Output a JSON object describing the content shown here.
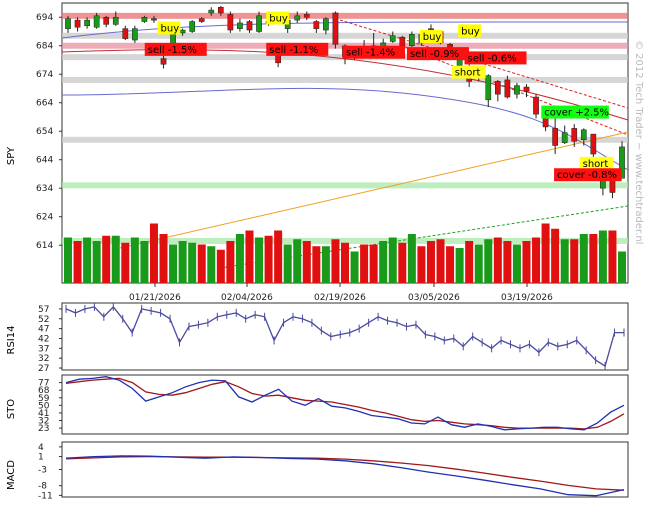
{
  "watermark": "© 2012 Tech Trader ~ www.techtrader.nl",
  "colors": {
    "up": "#1a9a1a",
    "down": "#e01010",
    "rsi": "#4a4aa0",
    "sto_k": "#2030b0",
    "sto_d": "#a01818",
    "buy_bg": "#ffff00",
    "sell_bg": "#ff1010",
    "short_bg": "#ffff20",
    "cover_bg": "#10ff10"
  },
  "chart_data": [
    {
      "type": "candlestick",
      "ylabel": "SPY",
      "ylim": [
        606,
        699
      ],
      "yticks": [
        614,
        624,
        634,
        644,
        654,
        664,
        674,
        684,
        694
      ],
      "dates": [
        "01/21/2026",
        "02/04/2026",
        "02/19/2026",
        "03/05/2026",
        "03/19/2026"
      ],
      "n": 59,
      "candles": [
        {
          "o": 690.0,
          "c": 693.5,
          "h": 694.5,
          "l": 688.5
        },
        {
          "o": 693.0,
          "c": 690.5,
          "h": 694.0,
          "l": 689.0
        },
        {
          "o": 691.0,
          "c": 693.0,
          "h": 694.0,
          "l": 690.0
        },
        {
          "o": 690.5,
          "c": 694.5,
          "h": 695.5,
          "l": 690.0
        },
        {
          "o": 694.0,
          "c": 691.5,
          "h": 694.5,
          "l": 690.5
        },
        {
          "o": 691.5,
          "c": 694.0,
          "h": 696.0,
          "l": 691.0
        },
        {
          "o": 690.0,
          "c": 686.5,
          "h": 691.0,
          "l": 686.0
        },
        {
          "o": 686.0,
          "c": 690.0,
          "h": 691.0,
          "l": 685.0
        },
        {
          "o": 692.5,
          "c": 694.0,
          "h": 694.5,
          "l": 692.0
        },
        {
          "o": 693.5,
          "c": 693.0,
          "h": 694.5,
          "l": 692.0
        },
        {
          "o": 679.5,
          "c": 677.5,
          "h": 681.5,
          "l": 676.0
        },
        {
          "o": 684.0,
          "c": 688.0,
          "h": 688.5,
          "l": 682.0
        },
        {
          "o": 688.5,
          "c": 689.5,
          "h": 690.0,
          "l": 687.5
        },
        {
          "o": 689.0,
          "c": 692.5,
          "h": 693.0,
          "l": 688.5
        },
        {
          "o": 693.5,
          "c": 692.5,
          "h": 694.0,
          "l": 692.0
        },
        {
          "o": 695.5,
          "c": 696.5,
          "h": 697.5,
          "l": 694.5
        },
        {
          "o": 697.5,
          "c": 695.5,
          "h": 698.0,
          "l": 694.5
        },
        {
          "o": 695.0,
          "c": 689.5,
          "h": 696.0,
          "l": 688.5
        },
        {
          "o": 690.0,
          "c": 692.0,
          "h": 693.5,
          "l": 689.0
        },
        {
          "o": 692.5,
          "c": 689.5,
          "h": 693.0,
          "l": 688.5
        },
        {
          "o": 689.0,
          "c": 694.5,
          "h": 696.0,
          "l": 688.5
        },
        {
          "o": 692.5,
          "c": 692.0,
          "h": 696.0,
          "l": 691.0
        },
        {
          "o": 682.0,
          "c": 678.0,
          "h": 682.5,
          "l": 676.5
        },
        {
          "o": 690.0,
          "c": 693.0,
          "h": 693.5,
          "l": 688.5
        },
        {
          "o": 693.0,
          "c": 694.5,
          "h": 696.0,
          "l": 692.0
        },
        {
          "o": 695.0,
          "c": 694.0,
          "h": 696.0,
          "l": 693.0
        },
        {
          "o": 692.5,
          "c": 690.0,
          "h": 693.0,
          "l": 688.5
        },
        {
          "o": 689.5,
          "c": 693.5,
          "h": 694.0,
          "l": 688.0
        },
        {
          "o": 695.5,
          "c": 684.5,
          "h": 696.0,
          "l": 683.0
        },
        {
          "o": 684.0,
          "c": 680.0,
          "h": 684.5,
          "l": 677.5
        },
        {
          "o": 680.0,
          "c": 682.5,
          "h": 683.0,
          "l": 679.0
        },
        {
          "o": 682.5,
          "c": 680.5,
          "h": 686.0,
          "l": 679.5
        },
        {
          "o": 684.0,
          "c": 683.0,
          "h": 688.5,
          "l": 682.5
        },
        {
          "o": 683.0,
          "c": 685.0,
          "h": 686.5,
          "l": 682.0
        },
        {
          "o": 685.5,
          "c": 687.5,
          "h": 689.0,
          "l": 685.0
        },
        {
          "o": 687.0,
          "c": 684.0,
          "h": 687.5,
          "l": 682.5
        },
        {
          "o": 684.0,
          "c": 688.0,
          "h": 689.0,
          "l": 683.5
        },
        {
          "o": 688.0,
          "c": 685.0,
          "h": 688.5,
          "l": 684.0
        },
        {
          "o": 690.0,
          "c": 689.0,
          "h": 691.5,
          "l": 688.5
        },
        {
          "o": 689.0,
          "c": 685.0,
          "h": 689.5,
          "l": 684.5
        },
        {
          "o": 684.5,
          "c": 680.5,
          "h": 685.0,
          "l": 679.0
        },
        {
          "o": 677.0,
          "c": 682.0,
          "h": 683.5,
          "l": 676.0
        },
        {
          "o": 676.0,
          "c": 671.5,
          "h": 678.5,
          "l": 669.5
        },
        {
          "o": 673.0,
          "c": 675.0,
          "h": 675.5,
          "l": 671.5
        },
        {
          "o": 665.0,
          "c": 673.5,
          "h": 674.0,
          "l": 662.5
        },
        {
          "o": 671.5,
          "c": 667.0,
          "h": 672.0,
          "l": 664.5
        },
        {
          "o": 672.0,
          "c": 666.0,
          "h": 673.5,
          "l": 665.5
        },
        {
          "o": 667.0,
          "c": 670.0,
          "h": 671.0,
          "l": 665.5
        },
        {
          "o": 669.5,
          "c": 668.0,
          "h": 670.5,
          "l": 666.0
        },
        {
          "o": 666.0,
          "c": 660.0,
          "h": 667.0,
          "l": 658.5
        },
        {
          "o": 660.0,
          "c": 655.5,
          "h": 661.0,
          "l": 654.0
        },
        {
          "o": 655.0,
          "c": 649.0,
          "h": 658.5,
          "l": 646.0
        },
        {
          "o": 650.0,
          "c": 653.5,
          "h": 656.0,
          "l": 649.5
        },
        {
          "o": 655.0,
          "c": 650.5,
          "h": 656.5,
          "l": 648.5
        },
        {
          "o": 651.0,
          "c": 654.5,
          "h": 655.0,
          "l": 649.0
        },
        {
          "o": 653.0,
          "c": 646.0,
          "h": 653.0,
          "l": 644.5
        },
        {
          "o": 634.0,
          "c": 640.0,
          "h": 641.0,
          "l": 631.5
        },
        {
          "o": 638.0,
          "c": 632.5,
          "h": 640.0,
          "l": 630.5
        },
        {
          "o": 637.5,
          "c": 648.5,
          "h": 650.5,
          "l": 637.5
        }
      ],
      "volume": [
        26,
        24,
        26,
        24,
        27,
        27,
        23,
        26,
        24,
        34,
        28,
        22,
        24,
        23,
        22,
        21,
        19,
        24,
        28,
        30,
        26,
        27,
        30,
        22,
        25,
        24,
        21,
        21,
        25,
        23,
        18,
        22,
        22,
        24,
        26,
        23,
        28,
        21,
        24,
        25,
        21,
        20,
        24,
        22,
        25,
        26,
        24,
        22,
        24,
        26,
        34,
        31,
        25,
        25,
        28,
        28,
        30,
        30,
        18
      ],
      "hlines": [
        694.5,
        687.5,
        684.0,
        680.0,
        672.0,
        651.0,
        635.0,
        615.5
      ],
      "signals": [
        {
          "text": "buy",
          "i": 14,
          "y": 689.0,
          "kind": "buy"
        },
        {
          "text": "sell -1.5%",
          "i": 12,
          "y": 681.5,
          "kind": "sell"
        },
        {
          "text": "buy",
          "i": 31,
          "y": 692.5,
          "kind": "buy"
        },
        {
          "text": "sell -1.1%",
          "i": 31,
          "y": 681.5,
          "kind": "sell"
        },
        {
          "text": "sell -1.4%",
          "i": 43,
          "y": 680.5,
          "kind": "sell"
        },
        {
          "text": "buy",
          "i": 55,
          "y": 686.0,
          "kind": "buy"
        },
        {
          "text": "sell -0.9%",
          "i": 53,
          "y": 680.0,
          "kind": "sell"
        },
        {
          "text": "buy",
          "i": 61,
          "y": 688.0,
          "kind": "buy"
        },
        {
          "text": "sell -0.6%",
          "i": 62,
          "y": 678.5,
          "kind": "sell"
        },
        {
          "text": "short",
          "i": 60,
          "y": 673.5,
          "kind": "short"
        },
        {
          "text": "cover +2.5%",
          "i": 74,
          "y": 659.5,
          "kind": "cover"
        },
        {
          "text": "short",
          "i": 80,
          "y": 641.5,
          "kind": "short"
        },
        {
          "text": "cover -0.8%",
          "i": 76,
          "y": 637.5,
          "kind": "sell"
        }
      ]
    },
    {
      "type": "line",
      "ylabel": "RSI14",
      "yticks": [
        27,
        32,
        37,
        42,
        47,
        52,
        57
      ],
      "ylim": [
        26,
        60
      ],
      "values": [
        57,
        55,
        57,
        58,
        53,
        58,
        52,
        45,
        57,
        56,
        55,
        52,
        40,
        48,
        49,
        50,
        53,
        54,
        55,
        52,
        54,
        53,
        41,
        50,
        53,
        52,
        50,
        46,
        43,
        44,
        45,
        47,
        50,
        53,
        51,
        50,
        48,
        49,
        44,
        43,
        41,
        42,
        38,
        43,
        40,
        37,
        41,
        39,
        37,
        39,
        35,
        40,
        38,
        39,
        41,
        36,
        31,
        28,
        45,
        45
      ]
    },
    {
      "type": "line",
      "ylabel": "STO",
      "yticks": [
        23,
        32,
        41,
        50,
        59,
        68,
        77
      ],
      "ylim": [
        16,
        86
      ],
      "k": [
        77,
        81,
        82,
        84,
        80,
        70,
        55,
        60,
        65,
        72,
        77,
        80,
        79,
        60,
        54,
        62,
        69,
        55,
        50,
        58,
        49,
        47,
        43,
        38,
        36,
        34,
        29,
        28,
        36,
        27,
        24,
        28,
        25,
        21,
        22,
        23,
        24,
        24,
        22,
        21,
        29,
        42,
        50
      ],
      "d": [
        76,
        78,
        80,
        81,
        82,
        77,
        66,
        63,
        62,
        65,
        70,
        75,
        78,
        72,
        64,
        61,
        62,
        59,
        56,
        55,
        54,
        51,
        48,
        44,
        41,
        37,
        33,
        31,
        32,
        30,
        28,
        27,
        26,
        24,
        23,
        23,
        23,
        23,
        23,
        22,
        24,
        31,
        40
      ]
    },
    {
      "type": "line",
      "ylabel": "MACD",
      "yticks": [
        -11,
        -8,
        -3,
        1,
        4
      ],
      "ylim": [
        -11.5,
        5.5
      ],
      "macd": [
        0.5,
        1,
        1.2,
        1.1,
        0.8,
        0.5,
        0.9,
        0.7,
        0.4,
        0.2,
        -0.3,
        -1.2,
        -2.4,
        -3.8,
        -5,
        -6.3,
        -7.7,
        -9,
        -10.8,
        -11.1,
        -9.2
      ],
      "signal": [
        0.3,
        0.6,
        0.9,
        1,
        0.9,
        0.8,
        0.8,
        0.7,
        0.6,
        0.5,
        0.2,
        -0.3,
        -1,
        -1.8,
        -2.9,
        -4.1,
        -5.4,
        -6.6,
        -7.9,
        -9,
        -9.4
      ]
    }
  ]
}
